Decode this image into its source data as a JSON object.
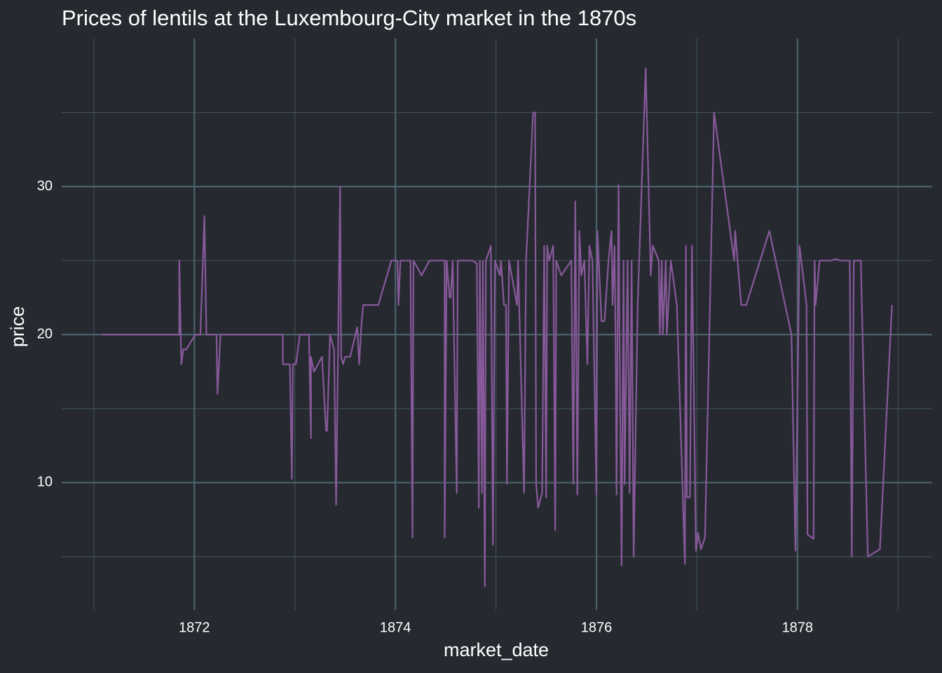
{
  "chart_data": {
    "type": "line",
    "title": "Prices of lentils at the Luxembourg-City market in the 1870s",
    "x_label": "market_date",
    "y_label": "price",
    "color": "#87599a",
    "x": [
      1871.08,
      1871.85,
      1871.85,
      1871.87,
      1871.89,
      1871.92,
      1872.01,
      1872.06,
      1872.1,
      1872.12,
      1872.22,
      1872.23,
      1872.26,
      1872.88,
      1872.88,
      1872.93,
      1872.95,
      1872.97,
      1872.98,
      1873.01,
      1873.05,
      1873.14,
      1873.16,
      1873.16,
      1873.19,
      1873.27,
      1873.31,
      1873.32,
      1873.35,
      1873.39,
      1873.41,
      1873.45,
      1873.46,
      1873.48,
      1873.5,
      1873.55,
      1873.62,
      1873.64,
      1873.66,
      1873.68,
      1873.83,
      1873.96,
      1874.02,
      1874.03,
      1874.05,
      1874.15,
      1874.17,
      1874.18,
      1874.26,
      1874.34,
      1874.49,
      1874.49,
      1874.51,
      1874.54,
      1874.55,
      1874.57,
      1874.61,
      1874.62,
      1874.77,
      1874.81,
      1874.83,
      1874.84,
      1874.86,
      1874.87,
      1874.89,
      1874.9,
      1874.95,
      1874.97,
      1874.99,
      1875.04,
      1875.05,
      1875.08,
      1875.1,
      1875.11,
      1875.13,
      1875.21,
      1875.22,
      1875.28,
      1875.3,
      1875.37,
      1875.39,
      1875.4,
      1875.42,
      1875.46,
      1875.48,
      1875.5,
      1875.51,
      1875.53,
      1875.57,
      1875.59,
      1875.6,
      1875.65,
      1875.75,
      1875.77,
      1875.79,
      1875.81,
      1875.83,
      1875.85,
      1875.88,
      1875.91,
      1875.93,
      1875.96,
      1876.0,
      1876.01,
      1876.05,
      1876.08,
      1876.12,
      1876.15,
      1876.16,
      1876.18,
      1876.19,
      1876.2,
      1876.22,
      1876.23,
      1876.25,
      1876.27,
      1876.28,
      1876.31,
      1876.33,
      1876.35,
      1876.37,
      1876.41,
      1876.49,
      1876.54,
      1876.56,
      1876.62,
      1876.63,
      1876.65,
      1876.66,
      1876.69,
      1876.7,
      1876.74,
      1876.8,
      1876.88,
      1876.89,
      1876.9,
      1876.93,
      1876.95,
      1876.99,
      1877.01,
      1877.04,
      1877.08,
      1877.17,
      1877.37,
      1877.38,
      1877.44,
      1877.49,
      1877.72,
      1877.94,
      1877.98,
      1878.02,
      1878.09,
      1878.1,
      1878.16,
      1878.17,
      1878.18,
      1878.22,
      1878.33,
      1878.38,
      1878.43,
      1878.52,
      1878.54,
      1878.56,
      1878.63,
      1878.7,
      1878.82,
      1878.94
    ],
    "values": [
      20,
      20,
      25,
      18,
      19,
      19,
      20,
      20,
      28,
      20,
      20,
      16,
      20,
      20,
      18,
      18,
      18,
      10.25,
      18,
      18,
      20,
      20,
      13,
      18.5,
      17.5,
      18.5,
      13.5,
      13.5,
      20,
      19,
      8.5,
      30,
      18.5,
      18,
      18.5,
      18.5,
      20.5,
      18,
      20.5,
      22,
      22,
      25,
      25,
      22,
      25,
      25,
      6.3,
      25,
      24,
      25,
      25,
      6.3,
      25,
      22.5,
      22.5,
      25,
      9.3,
      25,
      25,
      24.8,
      8.3,
      25,
      9.3,
      25,
      3,
      25,
      26,
      5.8,
      25,
      24,
      25,
      22,
      22,
      9.9,
      25,
      22,
      25,
      9.3,
      25,
      35,
      35,
      9.9,
      8.3,
      9.3,
      26,
      9,
      26,
      25,
      26,
      6.8,
      25,
      24,
      25,
      9.9,
      29,
      9.2,
      27,
      24,
      25,
      18,
      26,
      25,
      9.2,
      27,
      20.9,
      20.9,
      25,
      27,
      22,
      26,
      20,
      9.2,
      30.1,
      20,
      4.4,
      25,
      9.9,
      25,
      9.3,
      25,
      5,
      22,
      38,
      24,
      26,
      25,
      20,
      25,
      20,
      25,
      20,
      25,
      22,
      4.5,
      26,
      9,
      9,
      26,
      5.4,
      6.6,
      5.5,
      6.3,
      35,
      25,
      27,
      22,
      22,
      27,
      20,
      5.4,
      26,
      22,
      6.5,
      6.2,
      25,
      22,
      25,
      25,
      25.1,
      25,
      25,
      5,
      25,
      25,
      5,
      5.5,
      22
    ],
    "xlim": [
      1870.68,
      1879.34
    ],
    "ylim": [
      1.4,
      40
    ],
    "xticks": [
      1872,
      1874,
      1876,
      1878
    ],
    "yticks": [
      10,
      20,
      30
    ],
    "x_minor_ticks": [
      1871,
      1873,
      1875,
      1877,
      1879
    ],
    "y_minor_ticks": [
      5,
      15,
      25,
      35
    ],
    "grid": true
  }
}
